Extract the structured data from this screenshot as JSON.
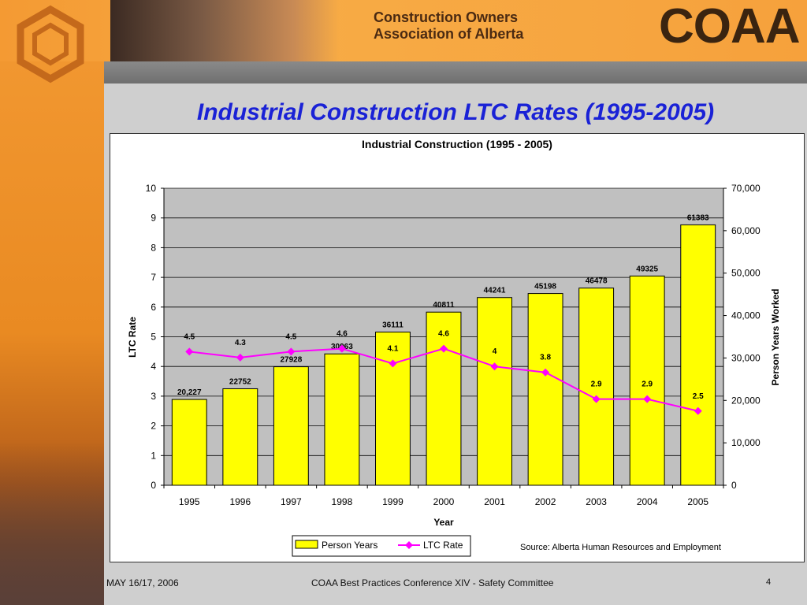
{
  "header": {
    "org_line1": "Construction Owners",
    "org_line2": "Association of Alberta",
    "brand": "COAA"
  },
  "slide_title": "Industrial Construction LTC Rates (1995-2005)",
  "chart_data": {
    "type": "bar",
    "title": "Industrial Construction (1995 - 2005)",
    "xlabel": "Year",
    "ylabel": "LTC Rate",
    "y2label": "Person Years Worked",
    "categories": [
      "1995",
      "1996",
      "1997",
      "1998",
      "1999",
      "2000",
      "2001",
      "2002",
      "2003",
      "2004",
      "2005"
    ],
    "series": [
      {
        "name": "Person Years",
        "type": "bar",
        "axis": "right",
        "color": "#ffff00",
        "values": [
          20227,
          22752,
          27928,
          30963,
          36111,
          40811,
          44241,
          45198,
          46478,
          49325,
          61383
        ],
        "labels": [
          "20,227",
          "22752",
          "27928",
          "30963",
          "36111",
          "40811",
          "44241",
          "45198",
          "46478",
          "49325",
          "61383"
        ]
      },
      {
        "name": "LTC Rate",
        "type": "line",
        "axis": "left",
        "color": "#ff00ff",
        "values": [
          4.5,
          4.3,
          4.5,
          4.6,
          4.1,
          4.6,
          4,
          3.8,
          2.9,
          2.9,
          2.5
        ],
        "labels": [
          "4.5",
          "4.3",
          "4.5",
          "4.6",
          "4.1",
          "4.6",
          "4",
          "3.8",
          "2.9",
          "2.9",
          "2.5"
        ]
      }
    ],
    "ylim": [
      0,
      10
    ],
    "y_ticks": [
      "0",
      "1",
      "2",
      "3",
      "4",
      "5",
      "6",
      "7",
      "8",
      "9",
      "10"
    ],
    "y2lim": [
      0,
      70000
    ],
    "y2_ticks": [
      "0",
      "10,000",
      "20,000",
      "30,000",
      "40,000",
      "50,000",
      "60,000",
      "70,000"
    ],
    "grid": true,
    "plot_background": "#c0c0c0",
    "legend": "bottom-center",
    "source": "Source: Alberta Human Resources and Employment"
  },
  "footer": {
    "date": "MAY 16/17, 2006",
    "event": "COAA Best Practices Conference XIV - Safety Committee",
    "page": "4"
  }
}
